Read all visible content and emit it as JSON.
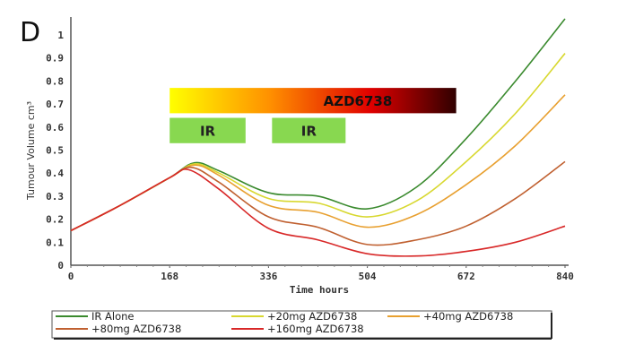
{
  "chart_data": {
    "type": "line",
    "panel_label": "D",
    "xlabel": "Time hours",
    "ylabel": "Tumour Volume cm³",
    "xlim": [
      0,
      840
    ],
    "ylim": [
      0,
      1
    ],
    "xticks": [
      "0",
      "168",
      "336",
      "504",
      "672",
      "840"
    ],
    "yticks": [
      "0",
      "0.1",
      "0.2",
      "0.3",
      "0.4",
      "0.5",
      "0.6",
      "0.7",
      "0.8",
      "0.9",
      "1"
    ],
    "legend_position": "bottom",
    "annotations": {
      "drug_bar": {
        "label": "AZD6738",
        "x": [
          168,
          655
        ],
        "y": [
          0.66,
          0.77
        ]
      },
      "ir_boxes": [
        {
          "label": "IR",
          "x": [
            168,
            297
          ],
          "y": [
            0.53,
            0.64
          ]
        },
        {
          "label": "IR",
          "x": [
            342,
            467
          ],
          "y": [
            0.53,
            0.64
          ]
        }
      ]
    },
    "series": [
      {
        "name": "IR Alone",
        "color": "#3a8a2e",
        "x": [
          0,
          84,
          168,
          210,
          252,
          336,
          420,
          504,
          588,
          672,
          756,
          840
        ],
        "y": [
          0.15,
          0.26,
          0.38,
          0.445,
          0.41,
          0.315,
          0.3,
          0.245,
          0.34,
          0.55,
          0.8,
          1.07
        ]
      },
      {
        "name": "+20mg AZD6738",
        "color": "#d8d830",
        "x": [
          0,
          84,
          168,
          210,
          252,
          336,
          420,
          504,
          588,
          672,
          756,
          840
        ],
        "y": [
          0.15,
          0.26,
          0.38,
          0.44,
          0.4,
          0.29,
          0.27,
          0.21,
          0.28,
          0.45,
          0.66,
          0.92
        ]
      },
      {
        "name": "+40mg AZD6738",
        "color": "#e8a030",
        "x": [
          0,
          84,
          168,
          210,
          252,
          336,
          420,
          504,
          588,
          672,
          756,
          840
        ],
        "y": [
          0.15,
          0.26,
          0.38,
          0.435,
          0.39,
          0.26,
          0.23,
          0.165,
          0.22,
          0.35,
          0.52,
          0.74
        ]
      },
      {
        "name": "+80mg AZD6738",
        "color": "#c06030",
        "x": [
          0,
          84,
          168,
          205,
          252,
          336,
          420,
          504,
          588,
          672,
          756,
          840
        ],
        "y": [
          0.15,
          0.26,
          0.38,
          0.425,
          0.36,
          0.21,
          0.165,
          0.09,
          0.11,
          0.17,
          0.29,
          0.45
        ]
      },
      {
        "name": "+160mg AZD6738",
        "color": "#d82828",
        "x": [
          0,
          84,
          168,
          200,
          252,
          336,
          420,
          504,
          588,
          672,
          756,
          840
        ],
        "y": [
          0.15,
          0.26,
          0.38,
          0.415,
          0.33,
          0.16,
          0.11,
          0.05,
          0.04,
          0.06,
          0.1,
          0.17
        ]
      }
    ]
  }
}
